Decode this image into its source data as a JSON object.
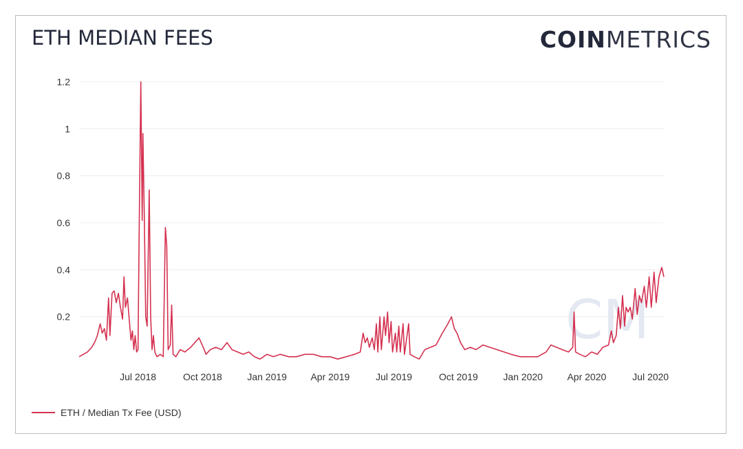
{
  "title": "ETH MEDIAN FEES",
  "logo": {
    "bold": "COIN",
    "light": "METRICS",
    "watermark": "CM"
  },
  "colors": {
    "series": "#d4304f",
    "grid": "#ececee",
    "text": "#23283a"
  },
  "chart_data": {
    "type": "line",
    "title": "ETH MEDIAN FEES",
    "xlabel": "",
    "ylabel": "",
    "xlim": [
      "2018-04-08",
      "2020-07-20"
    ],
    "ylim": [
      0,
      1.2
    ],
    "grid": true,
    "legend_position": "bottom-left",
    "y_ticks": [
      0.2,
      0.4,
      0.6,
      0.8,
      1,
      1.2
    ],
    "y_tick_labels": [
      "0.2",
      "0.4",
      "0.6",
      "0.8",
      "1",
      "1.2"
    ],
    "x_ticks": [
      "2018-07-01",
      "2018-10-01",
      "2019-01-01",
      "2019-04-01",
      "2019-07-01",
      "2019-10-01",
      "2020-01-01",
      "2020-04-01",
      "2020-07-01"
    ],
    "x_tick_labels": [
      "Jul 2018",
      "Oct 2018",
      "Jan 2019",
      "Apr 2019",
      "Jul 2019",
      "Oct 2019",
      "Jan 2020",
      "Apr 2020",
      "Jul 2020"
    ],
    "series": [
      {
        "name": "ETH / Median Tx Fee (USD)",
        "points": [
          [
            "2018-04-08",
            0.03
          ],
          [
            "2018-04-14",
            0.04
          ],
          [
            "2018-04-20",
            0.05
          ],
          [
            "2018-04-26",
            0.07
          ],
          [
            "2018-04-30",
            0.09
          ],
          [
            "2018-05-04",
            0.12
          ],
          [
            "2018-05-08",
            0.17
          ],
          [
            "2018-05-11",
            0.13
          ],
          [
            "2018-05-14",
            0.15
          ],
          [
            "2018-05-17",
            0.1
          ],
          [
            "2018-05-20",
            0.28
          ],
          [
            "2018-05-22",
            0.12
          ],
          [
            "2018-05-25",
            0.3
          ],
          [
            "2018-05-28",
            0.31
          ],
          [
            "2018-05-31",
            0.26
          ],
          [
            "2018-06-03",
            0.3
          ],
          [
            "2018-06-06",
            0.24
          ],
          [
            "2018-06-09",
            0.19
          ],
          [
            "2018-06-11",
            0.37
          ],
          [
            "2018-06-13",
            0.24
          ],
          [
            "2018-06-16",
            0.28
          ],
          [
            "2018-06-19",
            0.17
          ],
          [
            "2018-06-21",
            0.1
          ],
          [
            "2018-06-23",
            0.14
          ],
          [
            "2018-06-25",
            0.06
          ],
          [
            "2018-06-27",
            0.12
          ],
          [
            "2018-06-29",
            0.05
          ],
          [
            "2018-07-01",
            0.06
          ],
          [
            "2018-07-03",
            0.65
          ],
          [
            "2018-07-05",
            1.2
          ],
          [
            "2018-07-07",
            0.61
          ],
          [
            "2018-07-08",
            0.98
          ],
          [
            "2018-07-10",
            0.62
          ],
          [
            "2018-07-12",
            0.2
          ],
          [
            "2018-07-14",
            0.16
          ],
          [
            "2018-07-17",
            0.74
          ],
          [
            "2018-07-19",
            0.2
          ],
          [
            "2018-07-21",
            0.06
          ],
          [
            "2018-07-23",
            0.12
          ],
          [
            "2018-07-25",
            0.05
          ],
          [
            "2018-07-28",
            0.03
          ],
          [
            "2018-08-02",
            0.04
          ],
          [
            "2018-08-06",
            0.03
          ],
          [
            "2018-08-09",
            0.58
          ],
          [
            "2018-08-11",
            0.5
          ],
          [
            "2018-08-13",
            0.06
          ],
          [
            "2018-08-16",
            0.08
          ],
          [
            "2018-08-18",
            0.25
          ],
          [
            "2018-08-20",
            0.04
          ],
          [
            "2018-08-24",
            0.03
          ],
          [
            "2018-08-30",
            0.06
          ],
          [
            "2018-09-06",
            0.05
          ],
          [
            "2018-09-14",
            0.07
          ],
          [
            "2018-09-20",
            0.09
          ],
          [
            "2018-09-26",
            0.11
          ],
          [
            "2018-10-02",
            0.07
          ],
          [
            "2018-10-06",
            0.04
          ],
          [
            "2018-10-12",
            0.06
          ],
          [
            "2018-10-20",
            0.07
          ],
          [
            "2018-10-28",
            0.06
          ],
          [
            "2018-11-05",
            0.09
          ],
          [
            "2018-11-12",
            0.06
          ],
          [
            "2018-11-20",
            0.05
          ],
          [
            "2018-11-28",
            0.04
          ],
          [
            "2018-12-06",
            0.05
          ],
          [
            "2018-12-14",
            0.03
          ],
          [
            "2018-12-22",
            0.02
          ],
          [
            "2019-01-01",
            0.04
          ],
          [
            "2019-01-10",
            0.03
          ],
          [
            "2019-01-20",
            0.04
          ],
          [
            "2019-02-01",
            0.03
          ],
          [
            "2019-02-12",
            0.03
          ],
          [
            "2019-02-24",
            0.04
          ],
          [
            "2019-03-08",
            0.04
          ],
          [
            "2019-03-20",
            0.03
          ],
          [
            "2019-04-01",
            0.03
          ],
          [
            "2019-04-12",
            0.02
          ],
          [
            "2019-04-24",
            0.03
          ],
          [
            "2019-05-06",
            0.04
          ],
          [
            "2019-05-14",
            0.05
          ],
          [
            "2019-05-18",
            0.13
          ],
          [
            "2019-05-21",
            0.09
          ],
          [
            "2019-05-24",
            0.11
          ],
          [
            "2019-05-27",
            0.07
          ],
          [
            "2019-05-31",
            0.11
          ],
          [
            "2019-06-03",
            0.06
          ],
          [
            "2019-06-06",
            0.17
          ],
          [
            "2019-06-08",
            0.05
          ],
          [
            "2019-06-11",
            0.2
          ],
          [
            "2019-06-13",
            0.06
          ],
          [
            "2019-06-17",
            0.2
          ],
          [
            "2019-06-19",
            0.12
          ],
          [
            "2019-06-22",
            0.22
          ],
          [
            "2019-06-24",
            0.09
          ],
          [
            "2019-06-27",
            0.18
          ],
          [
            "2019-06-29",
            0.05
          ],
          [
            "2019-07-03",
            0.13
          ],
          [
            "2019-07-05",
            0.05
          ],
          [
            "2019-07-08",
            0.16
          ],
          [
            "2019-07-10",
            0.05
          ],
          [
            "2019-07-14",
            0.17
          ],
          [
            "2019-07-16",
            0.04
          ],
          [
            "2019-07-22",
            0.17
          ],
          [
            "2019-07-24",
            0.04
          ],
          [
            "2019-07-30",
            0.03
          ],
          [
            "2019-08-06",
            0.02
          ],
          [
            "2019-08-14",
            0.06
          ],
          [
            "2019-08-22",
            0.07
          ],
          [
            "2019-08-30",
            0.08
          ],
          [
            "2019-09-08",
            0.13
          ],
          [
            "2019-09-16",
            0.17
          ],
          [
            "2019-09-21",
            0.2
          ],
          [
            "2019-09-25",
            0.15
          ],
          [
            "2019-09-29",
            0.13
          ],
          [
            "2019-10-04",
            0.09
          ],
          [
            "2019-10-10",
            0.06
          ],
          [
            "2019-10-18",
            0.07
          ],
          [
            "2019-10-26",
            0.06
          ],
          [
            "2019-11-05",
            0.08
          ],
          [
            "2019-11-15",
            0.07
          ],
          [
            "2019-11-25",
            0.06
          ],
          [
            "2019-12-05",
            0.05
          ],
          [
            "2019-12-15",
            0.04
          ],
          [
            "2019-12-28",
            0.03
          ],
          [
            "2020-01-10",
            0.03
          ],
          [
            "2020-01-22",
            0.03
          ],
          [
            "2020-02-03",
            0.05
          ],
          [
            "2020-02-10",
            0.08
          ],
          [
            "2020-02-18",
            0.07
          ],
          [
            "2020-02-26",
            0.06
          ],
          [
            "2020-03-06",
            0.05
          ],
          [
            "2020-03-12",
            0.07
          ],
          [
            "2020-03-14",
            0.22
          ],
          [
            "2020-03-16",
            0.05
          ],
          [
            "2020-03-22",
            0.04
          ],
          [
            "2020-03-30",
            0.03
          ],
          [
            "2020-04-08",
            0.05
          ],
          [
            "2020-04-16",
            0.04
          ],
          [
            "2020-04-24",
            0.07
          ],
          [
            "2020-05-02",
            0.08
          ],
          [
            "2020-05-06",
            0.14
          ],
          [
            "2020-05-09",
            0.09
          ],
          [
            "2020-05-13",
            0.12
          ],
          [
            "2020-05-16",
            0.24
          ],
          [
            "2020-05-19",
            0.15
          ],
          [
            "2020-05-22",
            0.29
          ],
          [
            "2020-05-25",
            0.16
          ],
          [
            "2020-05-27",
            0.24
          ],
          [
            "2020-05-30",
            0.22
          ],
          [
            "2020-06-02",
            0.24
          ],
          [
            "2020-06-05",
            0.19
          ],
          [
            "2020-06-09",
            0.32
          ],
          [
            "2020-06-12",
            0.21
          ],
          [
            "2020-06-15",
            0.29
          ],
          [
            "2020-06-18",
            0.26
          ],
          [
            "2020-06-22",
            0.33
          ],
          [
            "2020-06-25",
            0.24
          ],
          [
            "2020-06-29",
            0.37
          ],
          [
            "2020-07-02",
            0.24
          ],
          [
            "2020-07-06",
            0.39
          ],
          [
            "2020-07-09",
            0.26
          ],
          [
            "2020-07-13",
            0.37
          ],
          [
            "2020-07-17",
            0.41
          ],
          [
            "2020-07-20",
            0.37
          ]
        ]
      }
    ]
  }
}
